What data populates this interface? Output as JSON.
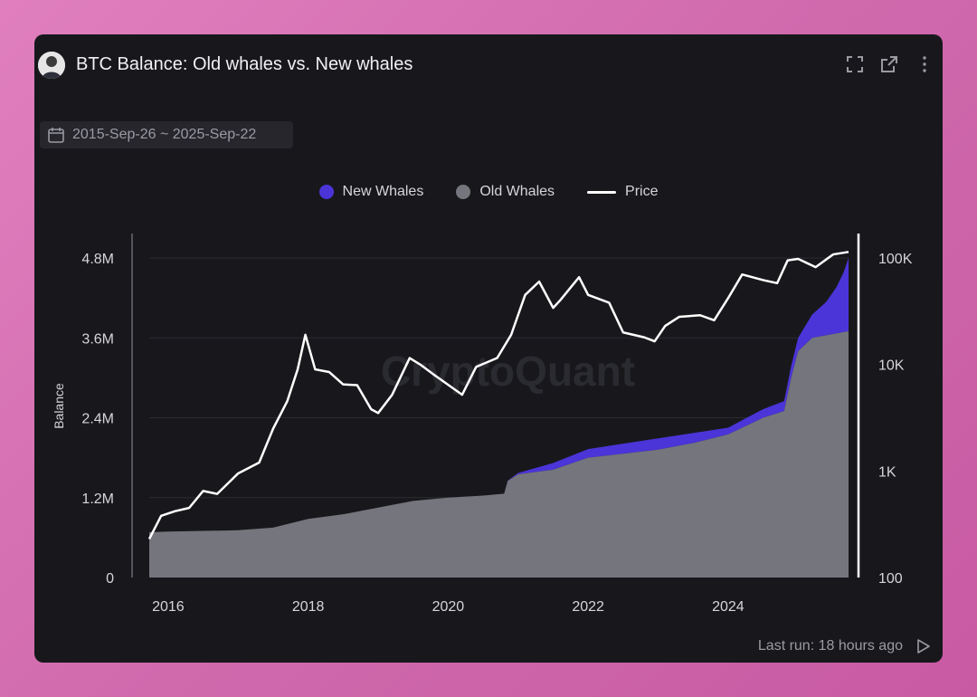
{
  "widget": {
    "title": "BTC Balance: Old whales vs. New whales",
    "date_range": "2015-Sep-26 ~ 2025-Sep-22",
    "last_run": "Last run: 18 hours ago",
    "watermark": "CryptoQuant",
    "icons": [
      "expand-icon",
      "open-external-icon",
      "more-options-icon",
      "calendar-icon",
      "run-icon"
    ]
  },
  "colors": {
    "background": "#18181c",
    "new_whales": "#4b35d8",
    "old_whales": "#75757d",
    "price": "#ffffff",
    "axis_text": "#d6d6da"
  },
  "chart_data": {
    "type": "area",
    "legend_position": "top-center",
    "grid": true,
    "x_axis": {
      "ticks": [
        "2016",
        "2018",
        "2020",
        "2022",
        "2024"
      ],
      "range": [
        2015.73,
        2025.72
      ]
    },
    "y_left": {
      "label": "Balance",
      "range": [
        0,
        4800000
      ],
      "ticks": [
        "0",
        "1.2M",
        "2.4M",
        "3.6M",
        "4.8M"
      ],
      "tick_values": [
        0,
        1200000,
        2400000,
        3600000,
        4800000
      ]
    },
    "y_right": {
      "scale": "log",
      "range": [
        100,
        100000
      ],
      "ticks": [
        "100",
        "1K",
        "10K",
        "100K"
      ],
      "tick_values": [
        100,
        1000,
        10000,
        100000
      ]
    },
    "legend": [
      "New Whales",
      "Old Whales",
      "Price"
    ],
    "series": [
      {
        "name": "Old Whales",
        "type": "area",
        "points": [
          [
            2015.73,
            680000
          ],
          [
            2016.0,
            690000
          ],
          [
            2016.5,
            700000
          ],
          [
            2017.0,
            710000
          ],
          [
            2017.5,
            750000
          ],
          [
            2018.0,
            880000
          ],
          [
            2018.5,
            950000
          ],
          [
            2019.0,
            1050000
          ],
          [
            2019.5,
            1150000
          ],
          [
            2020.0,
            1200000
          ],
          [
            2020.5,
            1230000
          ],
          [
            2020.8,
            1260000
          ],
          [
            2020.85,
            1450000
          ],
          [
            2021.0,
            1550000
          ],
          [
            2021.5,
            1620000
          ],
          [
            2022.0,
            1800000
          ],
          [
            2022.5,
            1860000
          ],
          [
            2023.0,
            1920000
          ],
          [
            2023.5,
            2020000
          ],
          [
            2024.0,
            2150000
          ],
          [
            2024.3,
            2300000
          ],
          [
            2024.5,
            2400000
          ],
          [
            2024.8,
            2500000
          ],
          [
            2024.9,
            3000000
          ],
          [
            2025.0,
            3400000
          ],
          [
            2025.2,
            3600000
          ],
          [
            2025.72,
            3700000
          ]
        ]
      },
      {
        "name": "New Whales",
        "type": "area",
        "points": [
          [
            2015.73,
            0
          ],
          [
            2020.8,
            0
          ],
          [
            2021.0,
            20000
          ],
          [
            2021.5,
            100000
          ],
          [
            2022.0,
            130000
          ],
          [
            2022.5,
            150000
          ],
          [
            2023.0,
            170000
          ],
          [
            2023.5,
            150000
          ],
          [
            2024.0,
            100000
          ],
          [
            2024.5,
            130000
          ],
          [
            2024.8,
            150000
          ],
          [
            2025.0,
            200000
          ],
          [
            2025.2,
            350000
          ],
          [
            2025.4,
            500000
          ],
          [
            2025.55,
            700000
          ],
          [
            2025.65,
            900000
          ],
          [
            2025.72,
            1100000
          ]
        ]
      },
      {
        "name": "Price",
        "type": "line",
        "axis": "right",
        "points": [
          [
            2015.73,
            230
          ],
          [
            2015.9,
            380
          ],
          [
            2016.1,
            420
          ],
          [
            2016.3,
            450
          ],
          [
            2016.5,
            650
          ],
          [
            2016.7,
            610
          ],
          [
            2017.0,
            950
          ],
          [
            2017.3,
            1200
          ],
          [
            2017.5,
            2500
          ],
          [
            2017.7,
            4500
          ],
          [
            2017.85,
            9000
          ],
          [
            2017.96,
            19000
          ],
          [
            2018.1,
            9000
          ],
          [
            2018.3,
            8500
          ],
          [
            2018.5,
            6500
          ],
          [
            2018.7,
            6400
          ],
          [
            2018.9,
            3800
          ],
          [
            2019.0,
            3500
          ],
          [
            2019.2,
            5200
          ],
          [
            2019.45,
            11500
          ],
          [
            2019.6,
            10000
          ],
          [
            2019.8,
            8000
          ],
          [
            2020.2,
            5200
          ],
          [
            2020.4,
            9500
          ],
          [
            2020.7,
            11500
          ],
          [
            2020.9,
            19000
          ],
          [
            2021.1,
            45000
          ],
          [
            2021.3,
            60000
          ],
          [
            2021.5,
            34000
          ],
          [
            2021.6,
            40000
          ],
          [
            2021.87,
            66000
          ],
          [
            2022.0,
            45000
          ],
          [
            2022.3,
            38000
          ],
          [
            2022.5,
            20000
          ],
          [
            2022.8,
            18000
          ],
          [
            2022.95,
            16500
          ],
          [
            2023.1,
            23000
          ],
          [
            2023.3,
            28000
          ],
          [
            2023.6,
            29000
          ],
          [
            2023.8,
            26000
          ],
          [
            2024.0,
            42000
          ],
          [
            2024.2,
            70000
          ],
          [
            2024.5,
            62000
          ],
          [
            2024.7,
            58000
          ],
          [
            2024.85,
            95000
          ],
          [
            2025.0,
            98000
          ],
          [
            2025.25,
            82000
          ],
          [
            2025.5,
            108000
          ],
          [
            2025.72,
            114000
          ]
        ]
      }
    ]
  }
}
